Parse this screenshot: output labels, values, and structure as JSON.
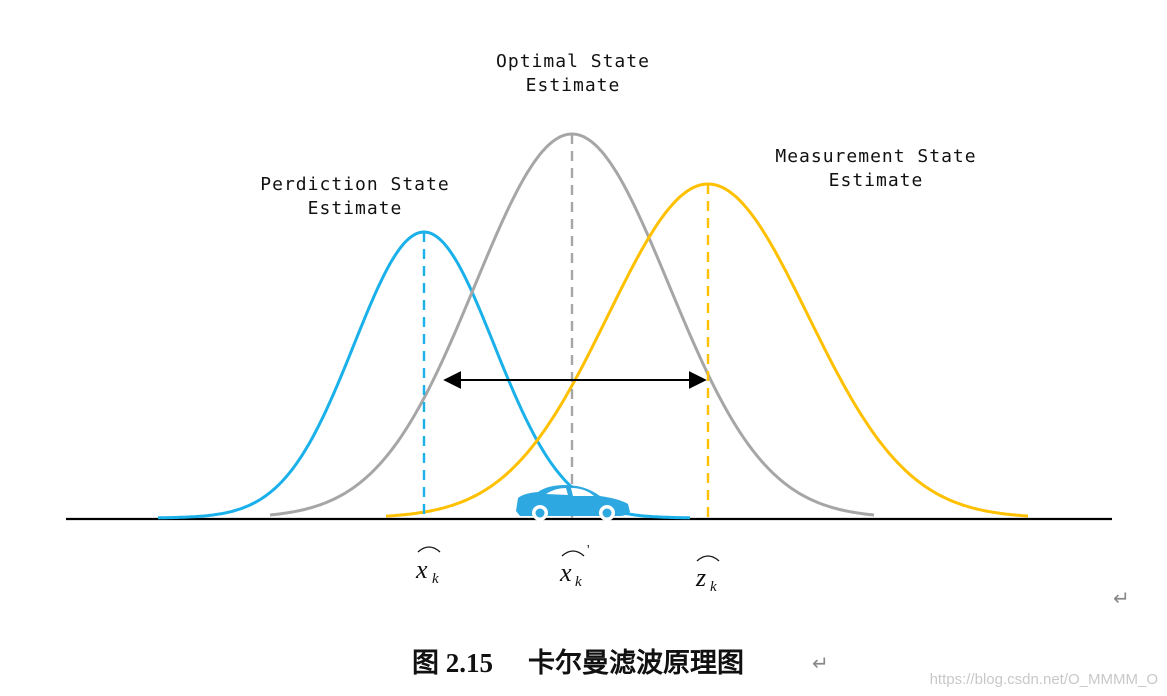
{
  "diagram": {
    "title_optimal": [
      "Optimal State",
      "Estimate"
    ],
    "title_prediction": [
      "Perdiction State",
      "Estimate"
    ],
    "title_measurement": [
      "Measurement State",
      "Estimate"
    ],
    "curves": [
      {
        "name": "prediction",
        "color": "#1ab0ea",
        "mean": 0,
        "sd": 1,
        "peak": 1
      },
      {
        "name": "optimal",
        "color": "#a6a6a6",
        "mean": 1,
        "sd": 1,
        "peak": 1
      },
      {
        "name": "measurement",
        "color": "#ffc000",
        "mean": 2,
        "sd": 1,
        "peak": 1
      }
    ],
    "symbols": {
      "x_hat": "x",
      "x_hat_sub": "k",
      "x_hat_prime": "x",
      "x_hat_prime_sub": "k",
      "prime_mark": "'",
      "z_hat": "z",
      "z_hat_sub": "k"
    },
    "arrow_color": "#000000",
    "car_color": "#2ea8e0"
  },
  "caption": {
    "label": "图 2.15",
    "text": "卡尔曼滤波原理图",
    "return_mark": "↵"
  },
  "return_mark_right": "↵",
  "watermark": "https://blog.csdn.net/O_MMMM_O"
}
